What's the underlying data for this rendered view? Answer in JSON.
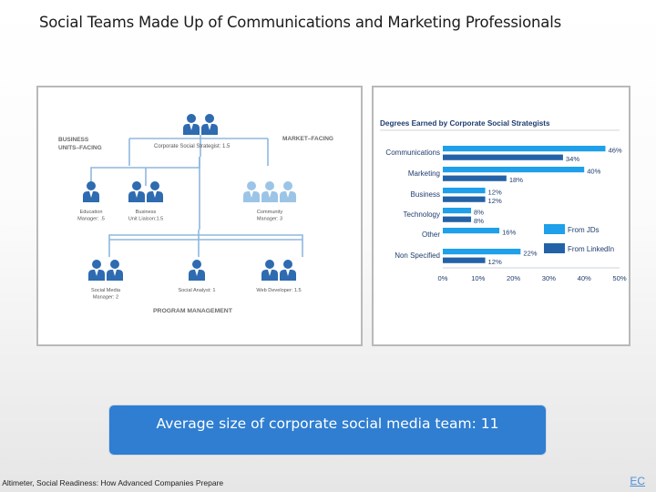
{
  "title": "Social Teams Made Up of Communications and Marketing Professionals",
  "org_chart": {
    "business_units_facing": [
      "BUSINESS",
      "UNITS–FACING"
    ],
    "market_facing": "MARKET–FACING",
    "program_management": "PROGRAM MANAGEMENT",
    "top_role": "Corporate Social Strategist: 1.5",
    "roles_level2": [
      {
        "lines": [
          "Education",
          "Manager: .5"
        ],
        "count": 1
      },
      {
        "lines": [
          "Business",
          "Unit Liaison:1.5"
        ],
        "count": 2
      },
      {
        "lines": [
          "Community",
          "Manager: 3"
        ],
        "count": 3
      }
    ],
    "roles_level3": [
      {
        "lines": [
          "Social Media",
          "Manager: 2"
        ],
        "count": 2
      },
      {
        "lines": [
          "Social Analyst: 1"
        ],
        "count": 1
      },
      {
        "lines": [
          "Web Developer: 1.5"
        ],
        "count": 2
      }
    ]
  },
  "chart_data": {
    "type": "bar",
    "orientation": "horizontal",
    "title": "Degrees Earned by Corporate Social Strategists",
    "categories": [
      "Communications",
      "Marketing",
      "Business",
      "Technology",
      "Other",
      "Non Specified"
    ],
    "series": [
      {
        "name": "From JDs",
        "values": [
          46,
          40,
          12,
          8,
          16,
          22
        ],
        "color": "#1ea0ea"
      },
      {
        "name": "From LinkedIn",
        "values": [
          34,
          18,
          12,
          8,
          null,
          12
        ],
        "color": "#2462a8"
      }
    ],
    "data_labels": [
      [
        "46%",
        "34%"
      ],
      [
        "40%",
        "18%"
      ],
      [
        "12%",
        "12%"
      ],
      [
        "8%",
        "8%"
      ],
      [
        "16%",
        ""
      ],
      [
        "22%",
        "12%"
      ]
    ],
    "xlim": [
      0,
      50
    ],
    "xticks": [
      "0%",
      "10%",
      "20%",
      "30%",
      "40%",
      "50%"
    ],
    "legend": "right"
  },
  "callout": "Average size of corporate social media team: 11",
  "source": ": Altimeter, Social Readiness: How Advanced Companies Prepare",
  "page_number": "EC",
  "colors": {
    "person_dark": "#2e6bb0",
    "person_light": "#9cc4e6",
    "line": "#8fb7dd",
    "callout_bg": "#2f7ed1"
  }
}
